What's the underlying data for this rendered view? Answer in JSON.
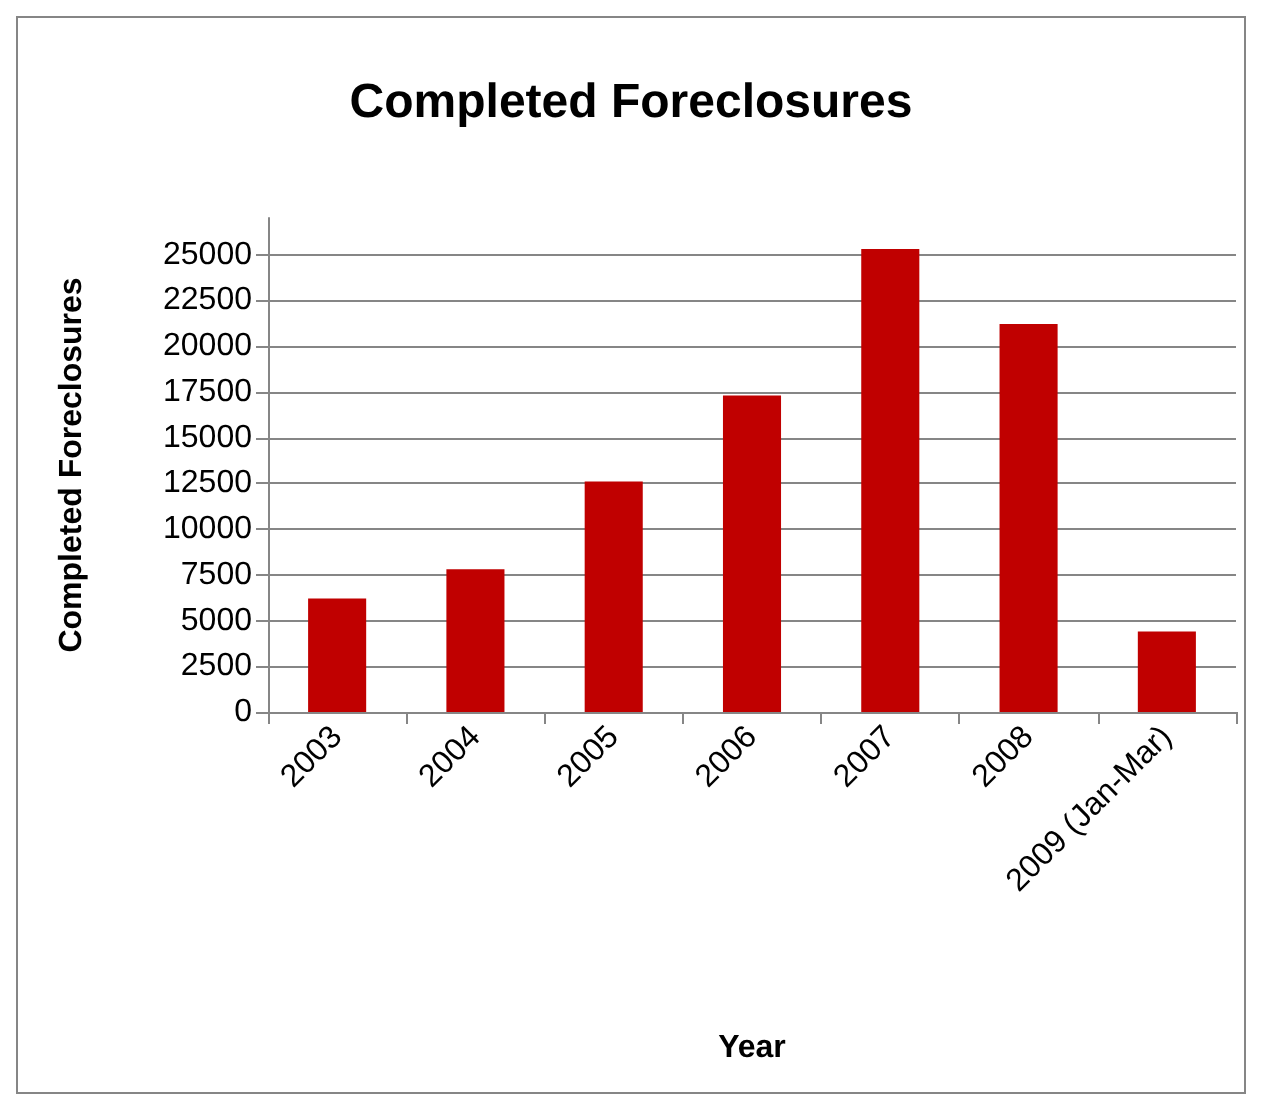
{
  "chart_data": {
    "type": "bar",
    "title": "Completed Foreclosures",
    "xlabel": "Year",
    "ylabel": "Completed Foreclosures",
    "categories": [
      "2003",
      "2004",
      "2005",
      "2006",
      "2007",
      "2008",
      "2009 (Jan-Mar)"
    ],
    "values": [
      6200,
      7800,
      12600,
      17300,
      25300,
      21200,
      4400
    ],
    "color": "#c00000",
    "ylim": [
      0,
      27000
    ],
    "yticks": [
      0,
      2500,
      5000,
      7500,
      10000,
      12500,
      15000,
      17500,
      20000,
      22500,
      25000
    ],
    "grid": "y"
  }
}
